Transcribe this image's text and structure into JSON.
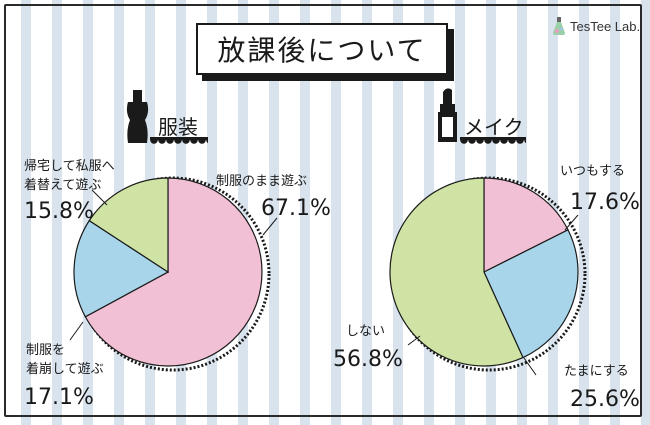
{
  "page": {
    "title": "放課後について"
  },
  "brand": {
    "name": "TesTee Lab."
  },
  "colors": {
    "pink": "#f2c0d5",
    "blue": "#a8d5ea",
    "green": "#cfe3a4",
    "stroke": "#1a1a1a"
  },
  "chart_data": [
    {
      "type": "pie",
      "title": "服装",
      "icon": "dress-bottle-icon",
      "slices": [
        {
          "label_lines": [
            "制服のまま遊ぶ"
          ],
          "value": 67.1,
          "display": "67.1%",
          "color": "#f2c0d5"
        },
        {
          "label_lines": [
            "制服を",
            "着崩して遊ぶ"
          ],
          "value": 17.1,
          "display": "17.1%",
          "color": "#a8d5ea"
        },
        {
          "label_lines": [
            "帰宅して私服へ",
            "着替えて遊ぶ"
          ],
          "value": 15.8,
          "display": "15.8%",
          "color": "#cfe3a4"
        }
      ]
    },
    {
      "type": "pie",
      "title": "メイク",
      "icon": "lipstick-icon",
      "slices": [
        {
          "label_lines": [
            "いつもする"
          ],
          "value": 17.6,
          "display": "17.6%",
          "color": "#f2c0d5"
        },
        {
          "label_lines": [
            "たまにする"
          ],
          "value": 25.6,
          "display": "25.6%",
          "color": "#a8d5ea"
        },
        {
          "label_lines": [
            "しない"
          ],
          "value": 56.8,
          "display": "56.8%",
          "color": "#cfe3a4"
        }
      ]
    }
  ]
}
